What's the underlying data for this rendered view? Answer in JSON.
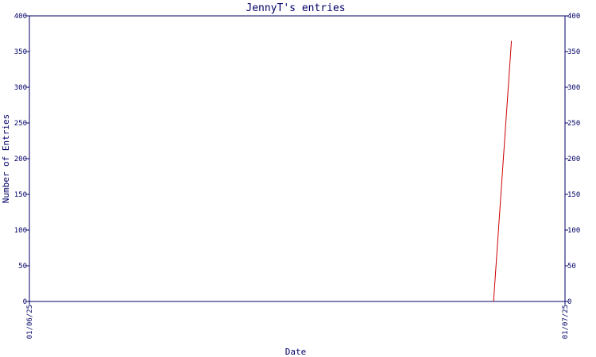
{
  "chart_data": {
    "type": "line",
    "title": "JennyT's entries",
    "xlabel": "Date",
    "ylabel": "Number of Entries",
    "x_tick_labels": [
      "01/06/25",
      "01/07/25"
    ],
    "ylim": [
      0,
      400
    ],
    "y_ticks": [
      0,
      50,
      100,
      150,
      200,
      250,
      300,
      350,
      400
    ],
    "y_tick_labels": [
      "0",
      "50",
      "100",
      "150",
      "200",
      "250",
      "300",
      "350",
      "400"
    ],
    "series": [
      {
        "color": "#cc0000",
        "points": [
          {
            "x": "2025-06-27",
            "y": 0
          },
          {
            "x": "2025-06-28",
            "y": 365
          }
        ]
      }
    ],
    "axis_color": "#000066",
    "grid": false,
    "legend": "none"
  }
}
